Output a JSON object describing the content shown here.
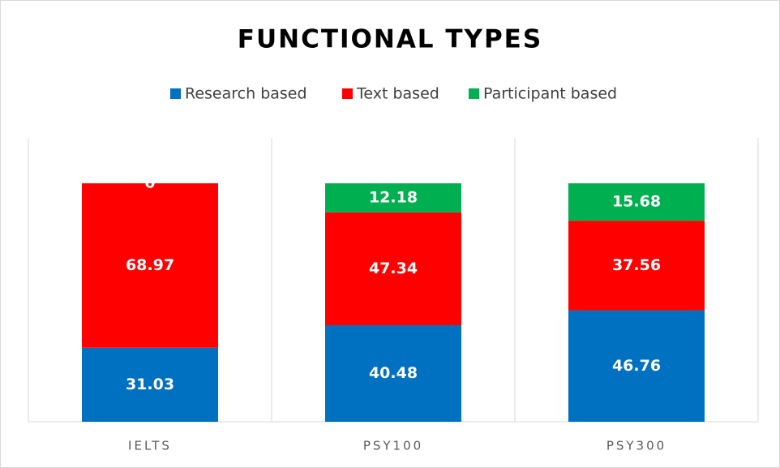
{
  "chart_data": {
    "type": "stacked_bar",
    "title": "FUNCTIONAL TYPES",
    "categories": [
      "IELTS",
      "PSY100",
      "PSY300"
    ],
    "series": [
      {
        "name": "Research based",
        "color": "#0070c0",
        "values": [
          31.03,
          40.48,
          46.76
        ]
      },
      {
        "name": "Text based",
        "color": "#ff0000",
        "values": [
          68.97,
          47.34,
          37.56
        ]
      },
      {
        "name": "Participant based",
        "color": "#00b050",
        "values": [
          0,
          12.18,
          15.68
        ]
      }
    ],
    "ylim": [
      0,
      100
    ],
    "legend": "top"
  }
}
